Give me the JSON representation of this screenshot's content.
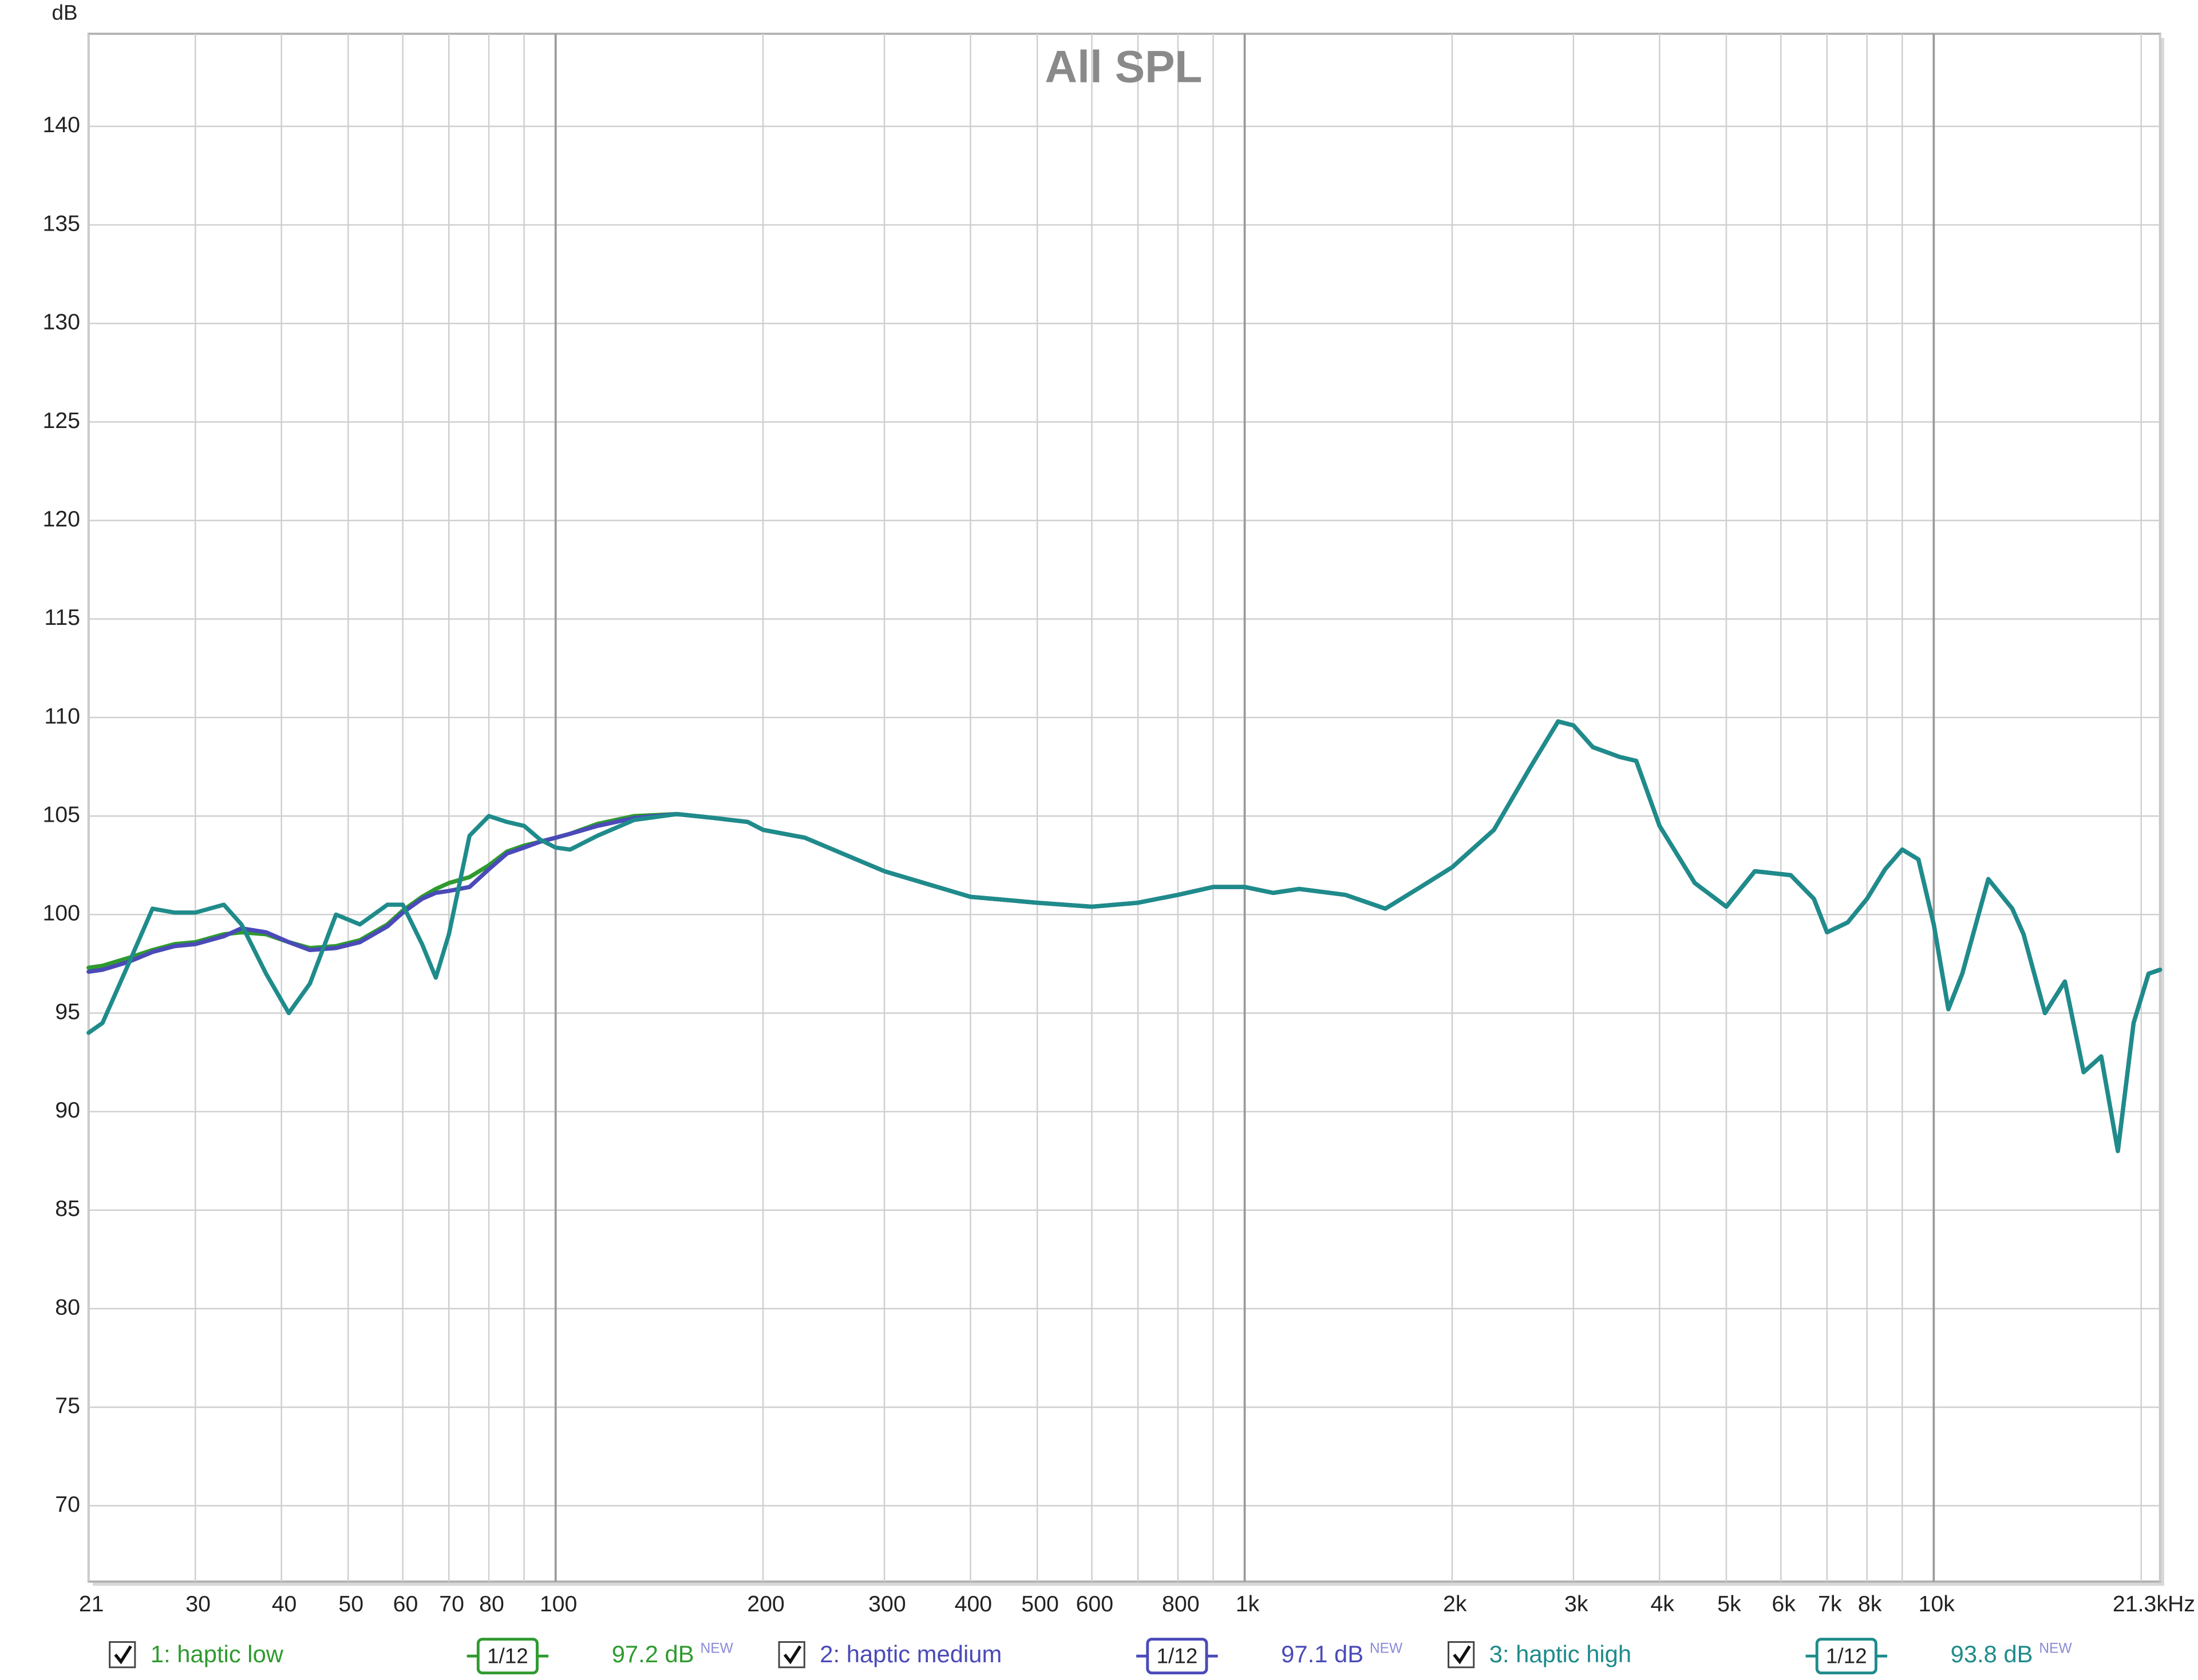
{
  "chart_data": {
    "type": "line",
    "title": "All SPL",
    "ylabel": "dB",
    "xscale": "log",
    "grid": true,
    "xlim": [
      21,
      21300
    ],
    "ylim": [
      66.15,
      144.7
    ],
    "yticks": [
      70,
      75,
      80,
      85,
      90,
      95,
      100,
      105,
      110,
      115,
      120,
      125,
      130,
      135,
      140
    ],
    "xticks": [
      21,
      30,
      40,
      50,
      60,
      70,
      80,
      100,
      200,
      300,
      400,
      500,
      600,
      800,
      {
        "value": 1000,
        "label": "1k"
      },
      {
        "value": 2000,
        "label": "2k"
      },
      {
        "value": 3000,
        "label": "3k"
      },
      {
        "value": 4000,
        "label": "4k"
      },
      {
        "value": 5000,
        "label": "5k"
      },
      {
        "value": 6000,
        "label": "6k"
      },
      {
        "value": 7000,
        "label": "7k"
      },
      {
        "value": 8000,
        "label": "8k"
      },
      {
        "value": 10000,
        "label": "10k"
      },
      {
        "value": 21300,
        "label": "21.3kHz"
      }
    ],
    "xgrid": [
      90,
      700,
      900,
      9000,
      20000
    ],
    "x": [
      21,
      22,
      24,
      26,
      28,
      30,
      33,
      35,
      38,
      41,
      44,
      48,
      52,
      57,
      60,
      64,
      67,
      70,
      75,
      80,
      85,
      90,
      95,
      100,
      105,
      115,
      130,
      150,
      170,
      190,
      200,
      230,
      300,
      400,
      500,
      600,
      700,
      800,
      900,
      1000,
      1100,
      1200,
      1400,
      1600,
      1800,
      2000,
      2300,
      2600,
      2850,
      3000,
      3200,
      3500,
      3700,
      4000,
      4500,
      5000,
      5500,
      6200,
      6700,
      7000,
      7500,
      8000,
      8500,
      9000,
      9500,
      10000,
      10500,
      11000,
      12000,
      13000,
      13500,
      14500,
      15500,
      16500,
      17500,
      18500,
      19500,
      20500,
      21300
    ],
    "series": [
      {
        "name": "1: haptic low",
        "color": "#2f9a2f",
        "smoothing": "1/12",
        "level": "97.2 dB",
        "badge": "NEW",
        "values": [
          97.3,
          97.4,
          97.8,
          98.2,
          98.5,
          98.6,
          99.0,
          99.1,
          99.0,
          98.6,
          98.3,
          98.4,
          98.7,
          99.5,
          100.2,
          100.9,
          101.3,
          101.6,
          101.9,
          102.5,
          103.2,
          103.5,
          103.7,
          103.9,
          104.1,
          104.6,
          105.0,
          105.1,
          104.9,
          104.7,
          104.3,
          103.9,
          102.2,
          100.9,
          100.6,
          100.4,
          100.6,
          101.0,
          101.4,
          101.4,
          101.1,
          101.3,
          101.0,
          100.3,
          101.4,
          102.4,
          104.3,
          107.5,
          109.8,
          109.6,
          108.5,
          108.0,
          107.8,
          104.5,
          101.6,
          100.4,
          102.2,
          102.0,
          100.8,
          99.1,
          99.6,
          100.8,
          102.3,
          103.3,
          102.8,
          99.5,
          95.2,
          97.0,
          101.8,
          100.3,
          99.0,
          95.0,
          96.6,
          92.0,
          92.8,
          88.0,
          94.5,
          97.0,
          97.2
        ]
      },
      {
        "name": "2: haptic medium",
        "color": "#4a4ab8",
        "smoothing": "1/12",
        "level": "97.1 dB",
        "badge": "NEW",
        "values": [
          97.1,
          97.2,
          97.6,
          98.1,
          98.4,
          98.5,
          98.9,
          99.3,
          99.1,
          98.6,
          98.2,
          98.3,
          98.6,
          99.4,
          100.1,
          100.8,
          101.1,
          101.2,
          101.4,
          102.3,
          103.1,
          103.4,
          103.7,
          103.9,
          104.1,
          104.5,
          104.9,
          105.1,
          104.9,
          104.7,
          104.3,
          103.9,
          102.2,
          100.9,
          100.6,
          100.4,
          100.6,
          101.0,
          101.4,
          101.4,
          101.1,
          101.3,
          101.0,
          100.3,
          101.4,
          102.4,
          104.3,
          107.5,
          109.8,
          109.6,
          108.5,
          108.0,
          107.8,
          104.5,
          101.6,
          100.4,
          102.2,
          102.0,
          100.8,
          99.1,
          99.6,
          100.8,
          102.3,
          103.3,
          102.8,
          99.5,
          95.2,
          97.0,
          101.8,
          100.3,
          99.0,
          95.0,
          96.6,
          92.0,
          92.8,
          88.0,
          94.5,
          97.0,
          97.2
        ]
      },
      {
        "name": "3: haptic high",
        "color": "#1f8b8b",
        "smoothing": "1/12",
        "level": "93.8 dB",
        "badge": "NEW",
        "values": [
          94.0,
          94.5,
          97.5,
          100.3,
          100.1,
          100.1,
          100.5,
          99.5,
          97.0,
          95.0,
          96.5,
          100.0,
          99.5,
          100.5,
          100.5,
          98.5,
          96.8,
          99.0,
          104.0,
          105.0,
          104.7,
          104.5,
          103.8,
          103.4,
          103.3,
          104.0,
          104.8,
          105.1,
          104.9,
          104.7,
          104.3,
          103.9,
          102.2,
          100.9,
          100.6,
          100.4,
          100.6,
          101.0,
          101.4,
          101.4,
          101.1,
          101.3,
          101.0,
          100.3,
          101.4,
          102.4,
          104.3,
          107.5,
          109.8,
          109.6,
          108.5,
          108.0,
          107.8,
          104.5,
          101.6,
          100.4,
          102.2,
          102.0,
          100.8,
          99.1,
          99.6,
          100.8,
          102.3,
          103.3,
          102.8,
          99.5,
          95.2,
          97.0,
          101.8,
          100.3,
          99.0,
          95.0,
          96.6,
          92.0,
          92.8,
          88.0,
          94.5,
          97.0,
          97.2
        ]
      }
    ]
  }
}
